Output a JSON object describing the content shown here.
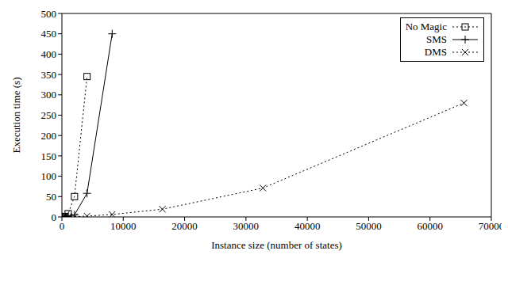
{
  "chart_data": {
    "type": "line",
    "x_label": "Instance size (number of states)",
    "y_label": "Execution time (s)",
    "xlim": [
      0,
      70000
    ],
    "xticks": [
      0,
      10000,
      20000,
      30000,
      40000,
      50000,
      60000,
      70000
    ],
    "ylim": [
      0,
      500
    ],
    "yticks": [
      0,
      50,
      100,
      150,
      200,
      250,
      300,
      350,
      400,
      450,
      500
    ],
    "grid": false,
    "legend": "upper right",
    "series": [
      {
        "name": "No Magic",
        "color": "#000000",
        "marker": "square",
        "line_style": "dotted",
        "x": [
          128,
          256,
          512,
          1024,
          2048,
          4096
        ],
        "values": [
          0.1,
          0.3,
          1,
          8,
          50,
          345
        ]
      },
      {
        "name": "SMS",
        "color": "#000000",
        "marker": "plus",
        "line_style": "solid",
        "x": [
          128,
          256,
          512,
          1024,
          2048,
          4096,
          8192
        ],
        "values": [
          0.1,
          0.2,
          0.5,
          1.5,
          5,
          58,
          450
        ]
      },
      {
        "name": "DMS",
        "color": "#000000",
        "marker": "x",
        "line_style": "dotted",
        "x": [
          128,
          256,
          512,
          1024,
          2048,
          4096,
          8192,
          16384,
          32768,
          65536
        ],
        "values": [
          0,
          0,
          0.1,
          0.3,
          0.8,
          2,
          6,
          19,
          71,
          280
        ]
      }
    ]
  }
}
